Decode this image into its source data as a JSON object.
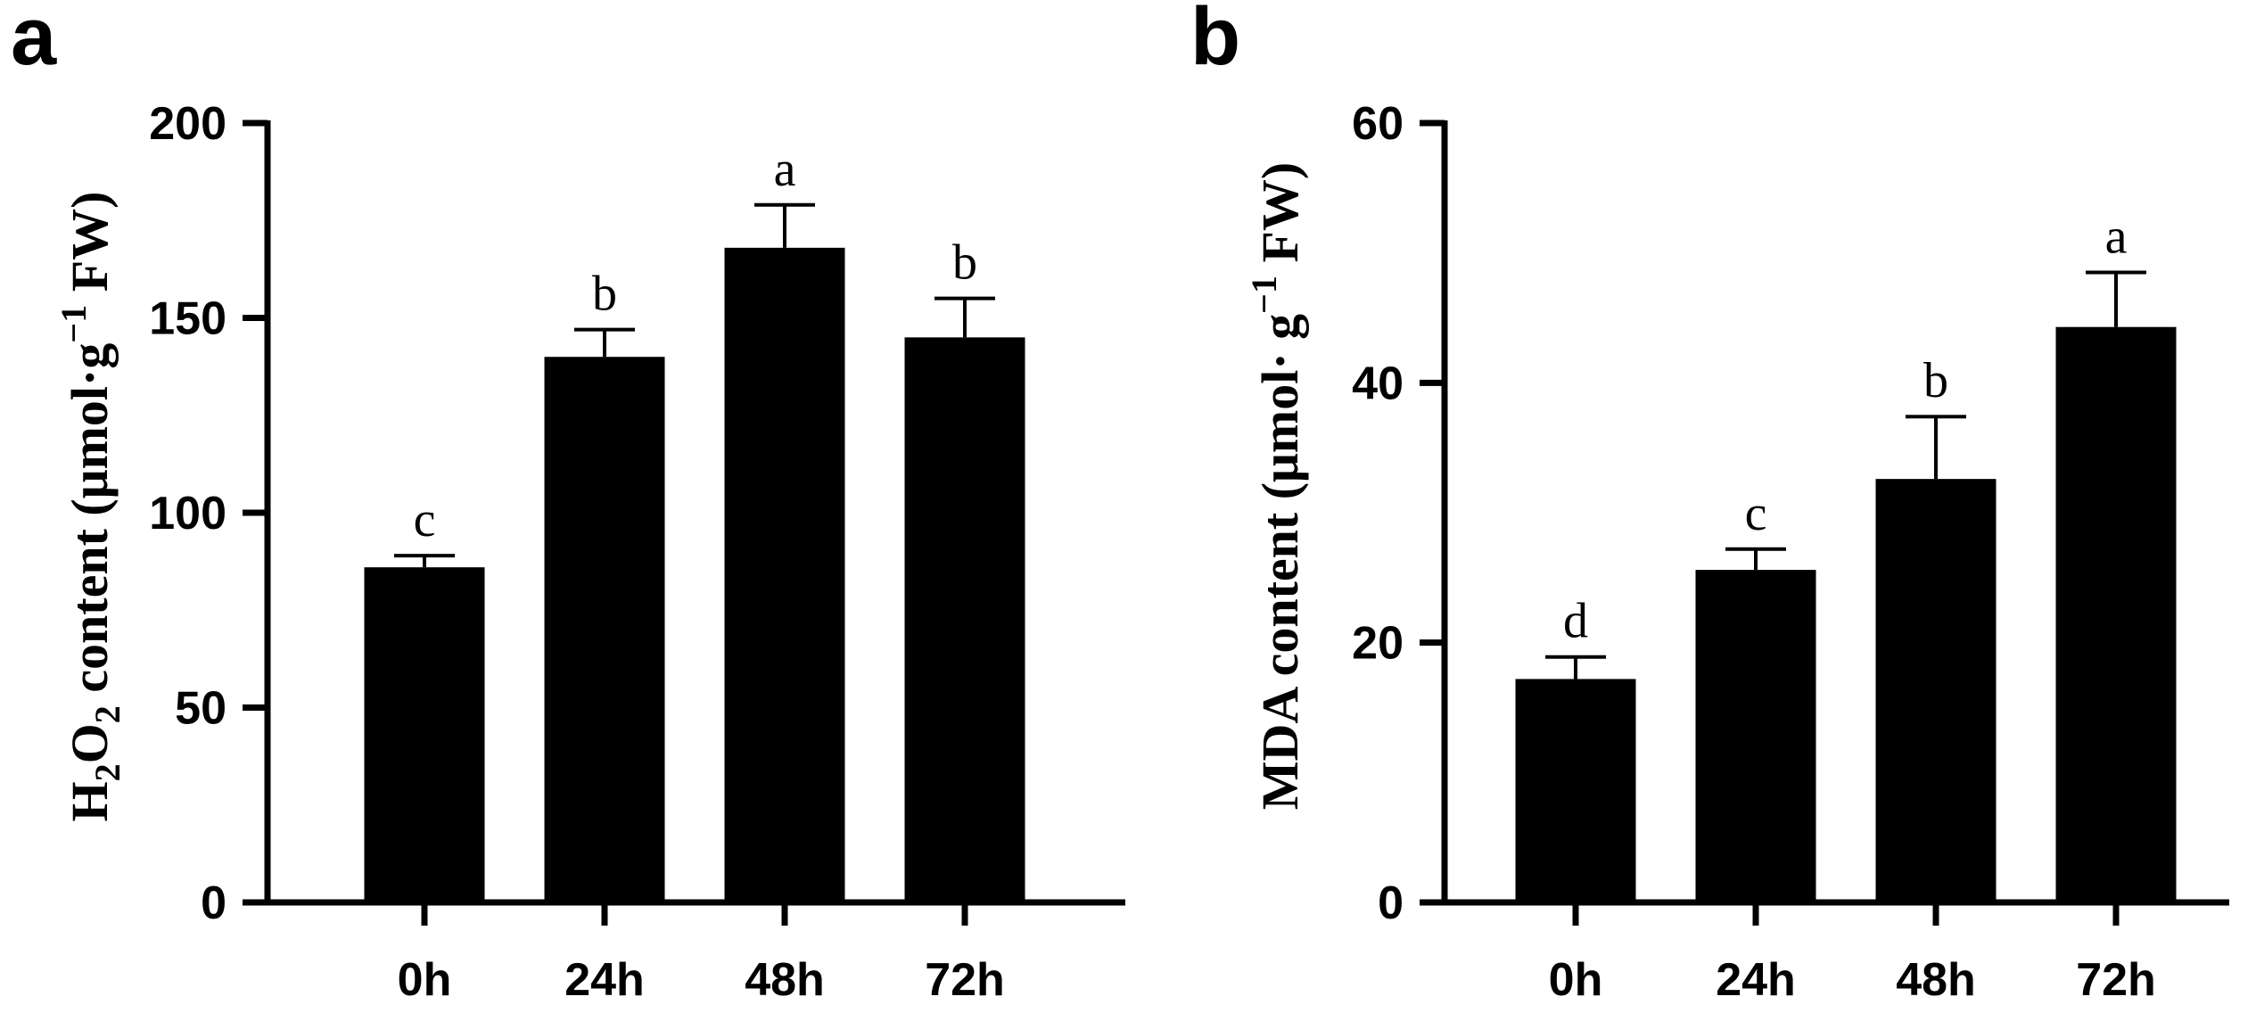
{
  "chart_data": [
    {
      "panel": "a",
      "type": "bar",
      "categories": [
        "0h",
        "24h",
        "48h",
        "72h"
      ],
      "values": [
        86,
        140,
        168,
        145
      ],
      "errors": [
        3,
        7,
        11,
        10
      ],
      "significance": [
        "c",
        "b",
        "a",
        "b"
      ],
      "ylabel_parts": {
        "main1": "H",
        "sub1": "2",
        "main2": "O",
        "sub2": "2",
        "main3": " content (μmol·g",
        "sup": "−1",
        "main4": " FW)"
      },
      "ylim": [
        0,
        200
      ],
      "yticks": [
        0,
        50,
        100,
        150,
        200
      ],
      "ytick_labels": [
        "0",
        "50",
        "100",
        "150",
        "200"
      ],
      "bar_color": "#000000"
    },
    {
      "panel": "b",
      "type": "bar",
      "categories": [
        "0h",
        "24h",
        "48h",
        "72h"
      ],
      "values": [
        17.2,
        25.6,
        32.6,
        44.3
      ],
      "errors": [
        1.7,
        1.6,
        4.8,
        4.2
      ],
      "significance": [
        "d",
        "c",
        "b",
        "a"
      ],
      "ylabel_parts": {
        "main1": "MDA content (μmol· g",
        "sup": "−1",
        "main2": " FW)"
      },
      "ylim": [
        0,
        60
      ],
      "yticks": [
        0,
        20,
        40,
        60
      ],
      "ytick_labels": [
        "0",
        "20",
        "40",
        "60"
      ],
      "bar_color": "#000000"
    }
  ]
}
